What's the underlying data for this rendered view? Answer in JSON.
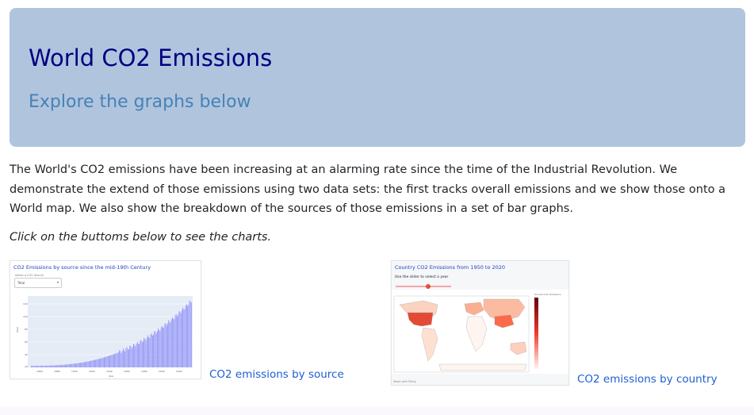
{
  "header": {
    "title": "World CO2 Emissions",
    "subtitle": "Explore the graphs below"
  },
  "intro": {
    "paragraph": "The World's CO2 emissions have been increasing at an alarming rate since the time of the Industrial Revolution. We demonstrate the extend of those emissions using two data sets: the first tracks overall emissions and we show those onto a World map. We also show the breakdown of the sources of those emissions in a set of bar graphs.",
    "hint": "Click on the buttoms below to see the charts."
  },
  "cards": {
    "source": {
      "thumb_title": "CO2 Emissions by source since the mid-19th Century",
      "select_label": "Select a CO2 Source",
      "select_value": "Total",
      "y_label": "Total",
      "x_label": "Year",
      "link_label": "CO2 emissions by source",
      "bar_color": "#8f8ff7"
    },
    "country": {
      "thumb_title": "Country CO2 Emissions from 1950 to 2020",
      "slider_caption": "Use the slider to select a year",
      "colorbar_label": "Annual CO2 emissions",
      "footer": "Made with Plotly",
      "link_label": "CO2 emissions by country"
    }
  },
  "colors": {
    "hero_bg": "#b0c4de",
    "title": "#000080",
    "subtitle": "#4682b4",
    "link": "#1f5fd1"
  }
}
